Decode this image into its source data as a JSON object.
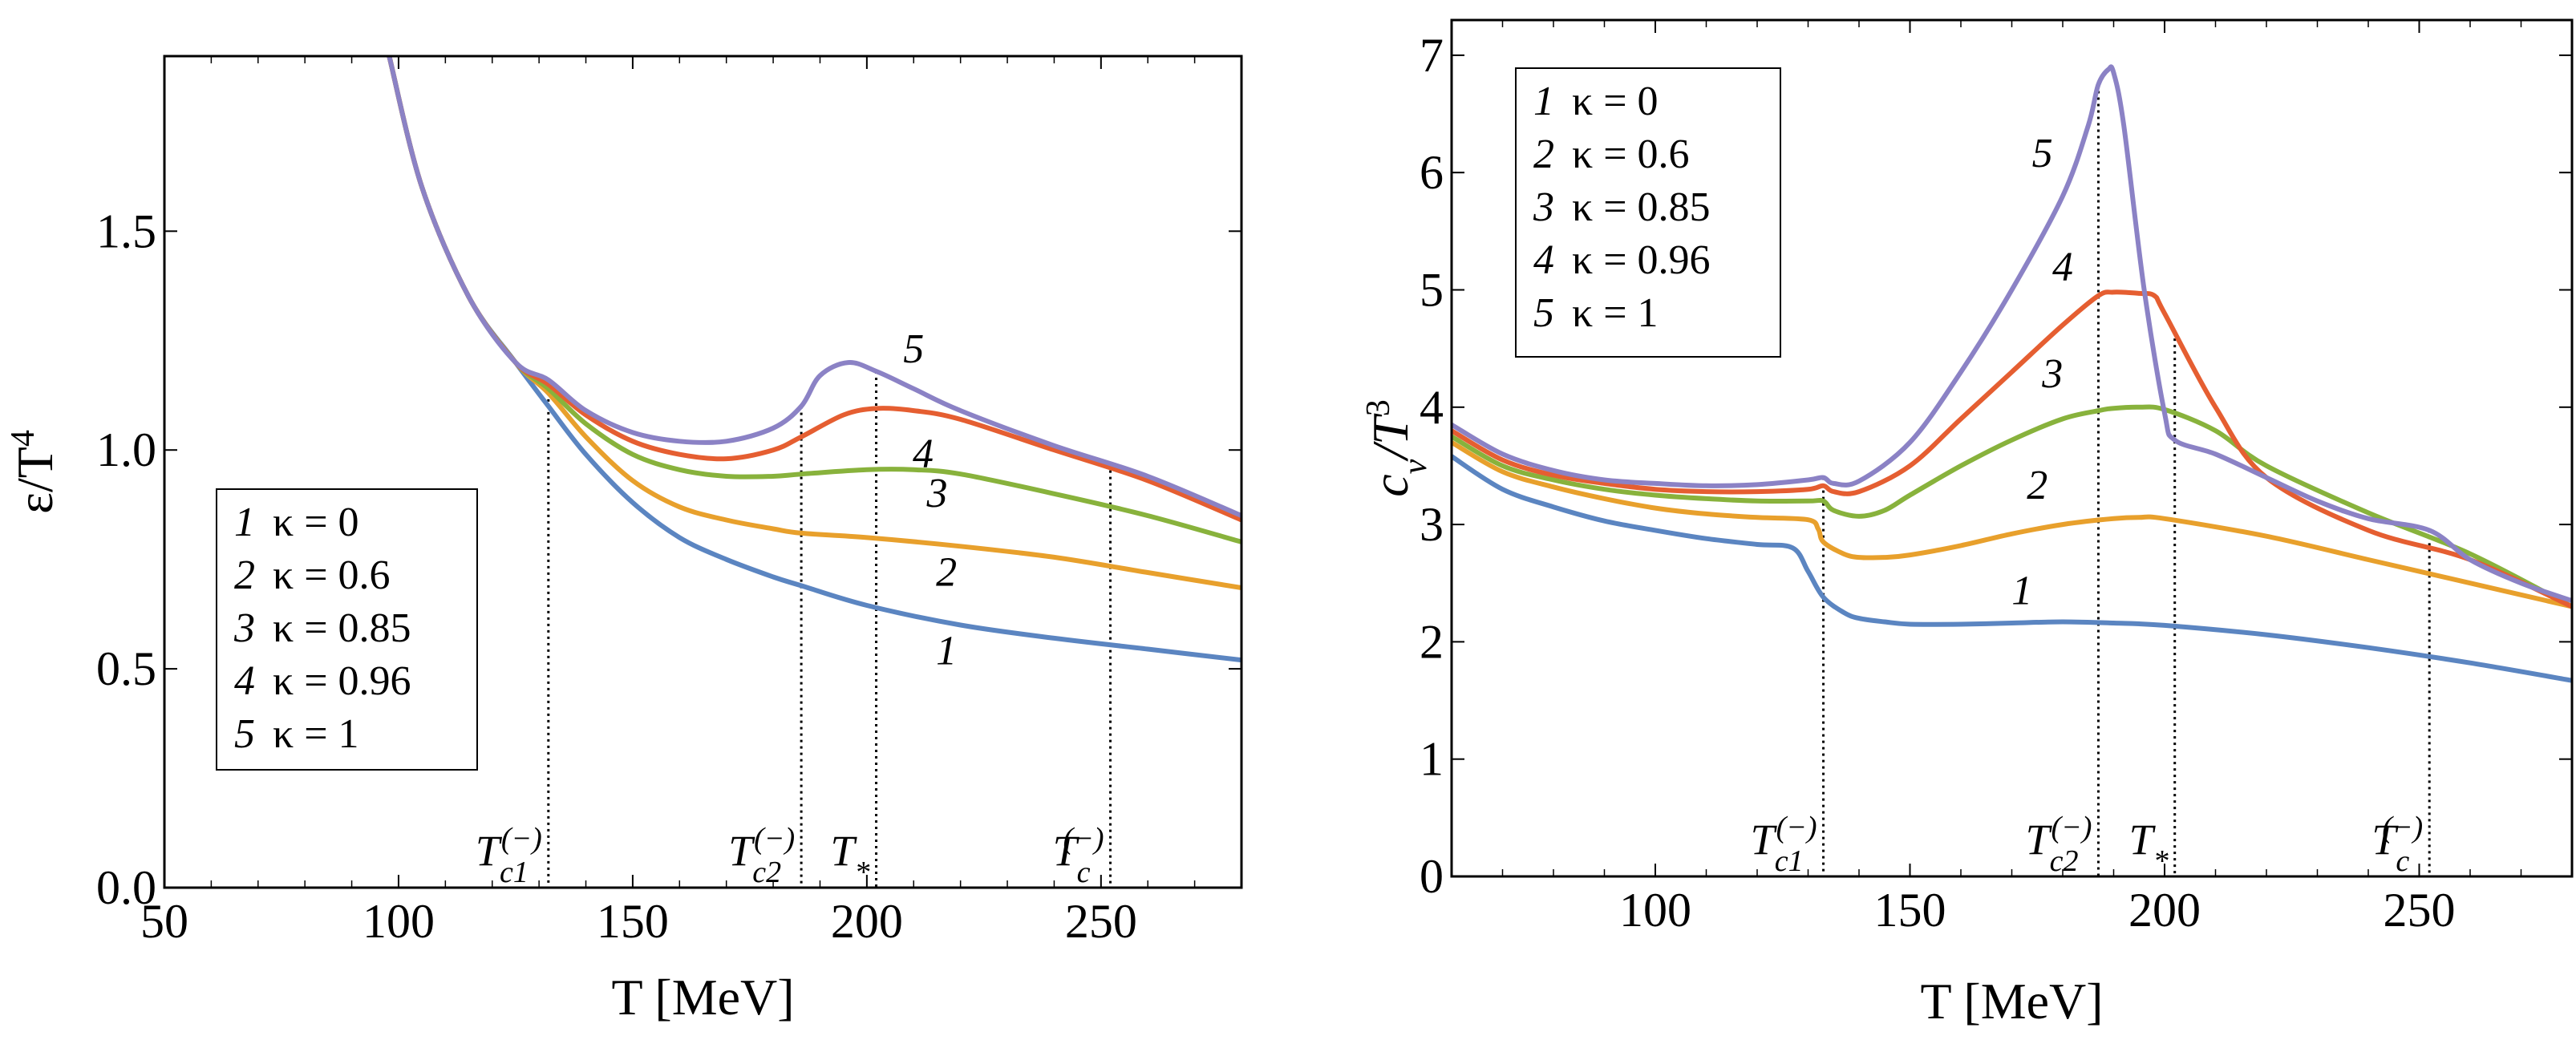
{
  "colors": {
    "c1": "#5B85C1",
    "c2": "#E8A02C",
    "c3": "#88B23C",
    "c4": "#E55E31",
    "c5": "#8B82C5"
  },
  "chart_data": [
    {
      "type": "line",
      "panel": "left",
      "xlabel": "T [MeV]",
      "ylabel": "ε/T",
      "ylabel_sup": "4",
      "xlim": [
        50,
        280
      ],
      "ylim": [
        0,
        1.9
      ],
      "xticks": [
        50,
        100,
        150,
        200,
        250
      ],
      "yticks": [
        0.0,
        0.5,
        1.0,
        1.5
      ],
      "ytick_labels": [
        "0.0",
        "0.5",
        "1.0",
        "1.5"
      ],
      "legend": {
        "placement": "bottom-left",
        "entries": [
          {
            "num": "1",
            "text": "κ = 0"
          },
          {
            "num": "2",
            "text": "κ = 0.6"
          },
          {
            "num": "3",
            "text": "κ = 0.85"
          },
          {
            "num": "4",
            "text": "κ = 0.96"
          },
          {
            "num": "5",
            "text": "κ = 1"
          }
        ]
      },
      "markers": [
        {
          "x": 132,
          "label": "T",
          "sub": "c1",
          "sup": "(−)"
        },
        {
          "x": 186,
          "label": "T",
          "sub": "c2",
          "sup": "(−)"
        },
        {
          "x": 202,
          "label": "T",
          "sub": "*",
          "sup": ""
        },
        {
          "x": 252,
          "label": "T",
          "sub": "c",
          "sup": "(−)"
        }
      ],
      "series": [
        {
          "name": "1",
          "color_key": "c1",
          "x": [
            98,
            105,
            115,
            125,
            132,
            140,
            150,
            160,
            170,
            180,
            186,
            200,
            220,
            240,
            260,
            280
          ],
          "y": [
            1.9,
            1.6,
            1.35,
            1.2,
            1.1,
            0.99,
            0.88,
            0.8,
            0.75,
            0.71,
            0.69,
            0.645,
            0.6,
            0.57,
            0.545,
            0.52
          ],
          "label": "1",
          "label_at": [
            217,
            0.51
          ]
        },
        {
          "name": "2",
          "color_key": "c2",
          "x": [
            98,
            105,
            115,
            125,
            132,
            140,
            150,
            160,
            170,
            180,
            186,
            200,
            220,
            240,
            260,
            280
          ],
          "y": [
            1.9,
            1.6,
            1.35,
            1.2,
            1.13,
            1.03,
            0.93,
            0.87,
            0.84,
            0.82,
            0.81,
            0.8,
            0.78,
            0.755,
            0.72,
            0.685
          ],
          "label": "2",
          "label_at": [
            217,
            0.69
          ]
        },
        {
          "name": "3",
          "color_key": "c3",
          "x": [
            98,
            105,
            115,
            125,
            132,
            140,
            150,
            160,
            170,
            180,
            186,
            200,
            210,
            220,
            240,
            260,
            280
          ],
          "y": [
            1.9,
            1.6,
            1.35,
            1.2,
            1.14,
            1.06,
            0.99,
            0.955,
            0.94,
            0.94,
            0.945,
            0.955,
            0.955,
            0.945,
            0.9,
            0.85,
            0.79
          ],
          "label": "3",
          "label_at": [
            215,
            0.87
          ]
        },
        {
          "name": "4",
          "color_key": "c4",
          "x": [
            98,
            105,
            115,
            125,
            132,
            140,
            150,
            160,
            170,
            180,
            186,
            195,
            202,
            210,
            220,
            240,
            260,
            280
          ],
          "y": [
            1.9,
            1.6,
            1.35,
            1.2,
            1.15,
            1.08,
            1.02,
            0.99,
            0.98,
            1.0,
            1.03,
            1.08,
            1.095,
            1.09,
            1.07,
            1.0,
            0.93,
            0.84
          ],
          "label": "4",
          "label_at": [
            212,
            0.96
          ]
        },
        {
          "name": "5",
          "color_key": "c5",
          "x": [
            98,
            105,
            115,
            125,
            132,
            140,
            150,
            160,
            170,
            180,
            186,
            190,
            196,
            202,
            210,
            220,
            240,
            260,
            280
          ],
          "y": [
            1.9,
            1.6,
            1.35,
            1.2,
            1.16,
            1.09,
            1.04,
            1.02,
            1.02,
            1.05,
            1.1,
            1.17,
            1.2,
            1.18,
            1.14,
            1.09,
            1.01,
            0.94,
            0.85
          ],
          "label": "5",
          "label_at": [
            210,
            1.2
          ]
        }
      ]
    },
    {
      "type": "line",
      "panel": "right",
      "xlabel": "T [MeV]",
      "ylabel": "c",
      "ylabel_sub": "v",
      "ylabel_tail": "/T",
      "ylabel_sup": "3",
      "xlim": [
        60,
        280
      ],
      "ylim": [
        0,
        7.3
      ],
      "xticks": [
        100,
        150,
        200,
        250
      ],
      "yticks": [
        0,
        1,
        2,
        3,
        4,
        5,
        6,
        7
      ],
      "ytick_labels": [
        "0",
        "1",
        "2",
        "3",
        "4",
        "5",
        "6",
        "7"
      ],
      "legend": {
        "placement": "top-left",
        "entries": [
          {
            "num": "1",
            "text": "κ = 0"
          },
          {
            "num": "2",
            "text": "κ = 0.6"
          },
          {
            "num": "3",
            "text": "κ = 0.85"
          },
          {
            "num": "4",
            "text": "κ = 0.96"
          },
          {
            "num": "5",
            "text": "κ = 1"
          }
        ]
      },
      "markers": [
        {
          "x": 133,
          "label": "T",
          "sub": "c1",
          "sup": "(−)"
        },
        {
          "x": 187,
          "label": "T",
          "sub": "c2",
          "sup": "(−)"
        },
        {
          "x": 202,
          "label": "T",
          "sub": "*",
          "sup": ""
        },
        {
          "x": 252,
          "label": "T",
          "sub": "c",
          "sup": "(−)"
        }
      ],
      "series": [
        {
          "name": "1",
          "color_key": "c1",
          "x": [
            60,
            70,
            80,
            90,
            100,
            110,
            120,
            127,
            130,
            133,
            137,
            140,
            145,
            150,
            160,
            170,
            180,
            190,
            200,
            220,
            240,
            260,
            280
          ],
          "y": [
            3.58,
            3.3,
            3.15,
            3.03,
            2.95,
            2.88,
            2.83,
            2.8,
            2.6,
            2.38,
            2.25,
            2.2,
            2.17,
            2.15,
            2.15,
            2.16,
            2.17,
            2.16,
            2.14,
            2.06,
            1.95,
            1.82,
            1.67
          ],
          "label": "1",
          "label_at": [
            172,
            2.32
          ]
        },
        {
          "name": "2",
          "color_key": "c2",
          "x": [
            60,
            70,
            80,
            90,
            100,
            110,
            120,
            130,
            132,
            133,
            137,
            140,
            145,
            150,
            160,
            170,
            180,
            190,
            195,
            200,
            220,
            240,
            260,
            280
          ],
          "y": [
            3.7,
            3.45,
            3.32,
            3.22,
            3.14,
            3.09,
            3.06,
            3.04,
            2.96,
            2.85,
            2.75,
            2.72,
            2.72,
            2.74,
            2.82,
            2.92,
            3.0,
            3.05,
            3.06,
            3.05,
            2.9,
            2.7,
            2.5,
            2.3
          ],
          "label": "2",
          "label_at": [
            175,
            3.22
          ]
        },
        {
          "name": "3",
          "color_key": "c3",
          "x": [
            60,
            70,
            80,
            90,
            100,
            110,
            120,
            130,
            133,
            135,
            140,
            145,
            150,
            160,
            170,
            180,
            187,
            190,
            195,
            200,
            210,
            220,
            240,
            260,
            280
          ],
          "y": [
            3.75,
            3.5,
            3.38,
            3.3,
            3.25,
            3.22,
            3.2,
            3.2,
            3.2,
            3.12,
            3.07,
            3.12,
            3.25,
            3.5,
            3.72,
            3.9,
            3.97,
            3.99,
            4.0,
            3.98,
            3.8,
            3.5,
            3.1,
            2.75,
            2.3
          ],
          "label": "3",
          "label_at": [
            178,
            4.17
          ]
        },
        {
          "name": "4",
          "color_key": "c4",
          "x": [
            60,
            70,
            80,
            90,
            100,
            110,
            120,
            130,
            133,
            135,
            140,
            150,
            160,
            170,
            180,
            187,
            190,
            195,
            198,
            200,
            210,
            220,
            240,
            260,
            280
          ],
          "y": [
            3.8,
            3.55,
            3.42,
            3.35,
            3.3,
            3.28,
            3.28,
            3.3,
            3.33,
            3.28,
            3.28,
            3.5,
            3.9,
            4.3,
            4.7,
            4.95,
            4.98,
            4.97,
            4.95,
            4.8,
            4.0,
            3.4,
            2.95,
            2.7,
            2.3
          ],
          "label": "4",
          "label_at": [
            180,
            5.08
          ]
        },
        {
          "name": "5",
          "color_key": "c5",
          "x": [
            60,
            70,
            80,
            90,
            100,
            110,
            120,
            130,
            133,
            135,
            140,
            150,
            160,
            170,
            180,
            185,
            187,
            189,
            190,
            192,
            196,
            200,
            202,
            210,
            220,
            230,
            240,
            252,
            260,
            270,
            280
          ],
          "y": [
            3.85,
            3.6,
            3.46,
            3.38,
            3.35,
            3.33,
            3.34,
            3.38,
            3.4,
            3.35,
            3.37,
            3.7,
            4.3,
            5.0,
            5.8,
            6.4,
            6.75,
            6.88,
            6.85,
            6.4,
            5.0,
            3.95,
            3.72,
            3.6,
            3.4,
            3.2,
            3.05,
            2.95,
            2.7,
            2.5,
            2.35
          ],
          "label": "5",
          "label_at": [
            176,
            6.05
          ]
        }
      ]
    }
  ]
}
